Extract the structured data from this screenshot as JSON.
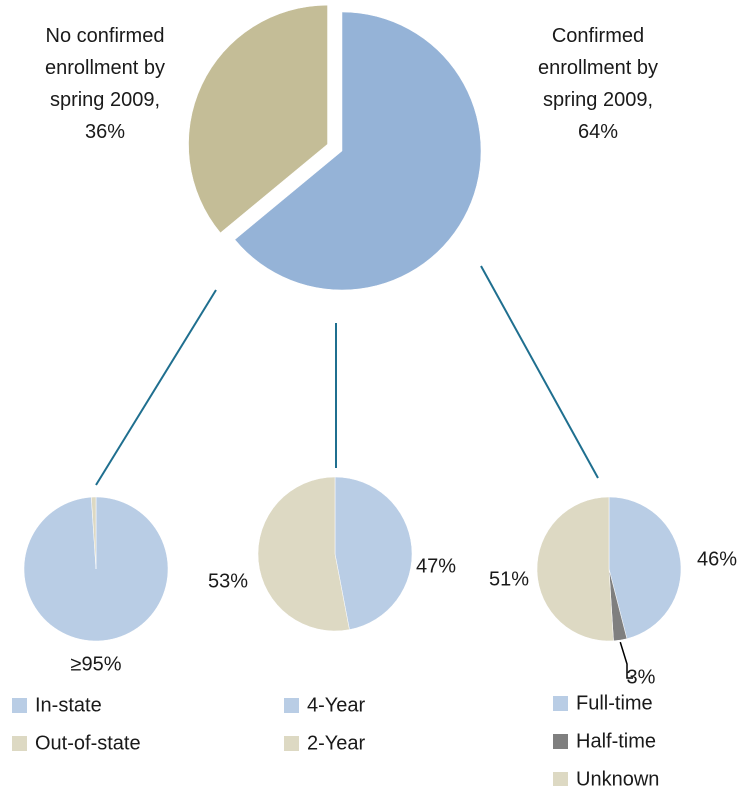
{
  "chart_data": [
    {
      "type": "pie",
      "values": [
        64,
        36
      ],
      "colors": [
        "#95b3d7",
        "#c4bd97"
      ],
      "value_labels": [
        "Confirmed enrollment by spring 2009, 64%",
        "No confirmed enrollment by spring 2009, 36%"
      ],
      "explode": [
        false,
        true
      ]
    },
    {
      "type": "pie",
      "categories": [
        "In-state",
        "Out-of-state"
      ],
      "values": [
        95,
        1
      ],
      "colors": [
        "#b9cde5",
        "#ddd9c3"
      ],
      "value_labels": [
        "≥95%",
        null
      ]
    },
    {
      "type": "pie",
      "categories": [
        "4-Year",
        "2-Year"
      ],
      "values": [
        47,
        53
      ],
      "colors": [
        "#b9cde5",
        "#ddd9c3"
      ],
      "value_labels": [
        "47%",
        "53%"
      ]
    },
    {
      "type": "pie",
      "categories": [
        "Full-time",
        "Half-time",
        "Unknown"
      ],
      "values": [
        46,
        3,
        51
      ],
      "colors": [
        "#b9cde5",
        "#7f7f7f",
        "#ddd9c3"
      ],
      "value_labels": [
        "46%",
        "3%",
        "51%"
      ]
    }
  ]
}
